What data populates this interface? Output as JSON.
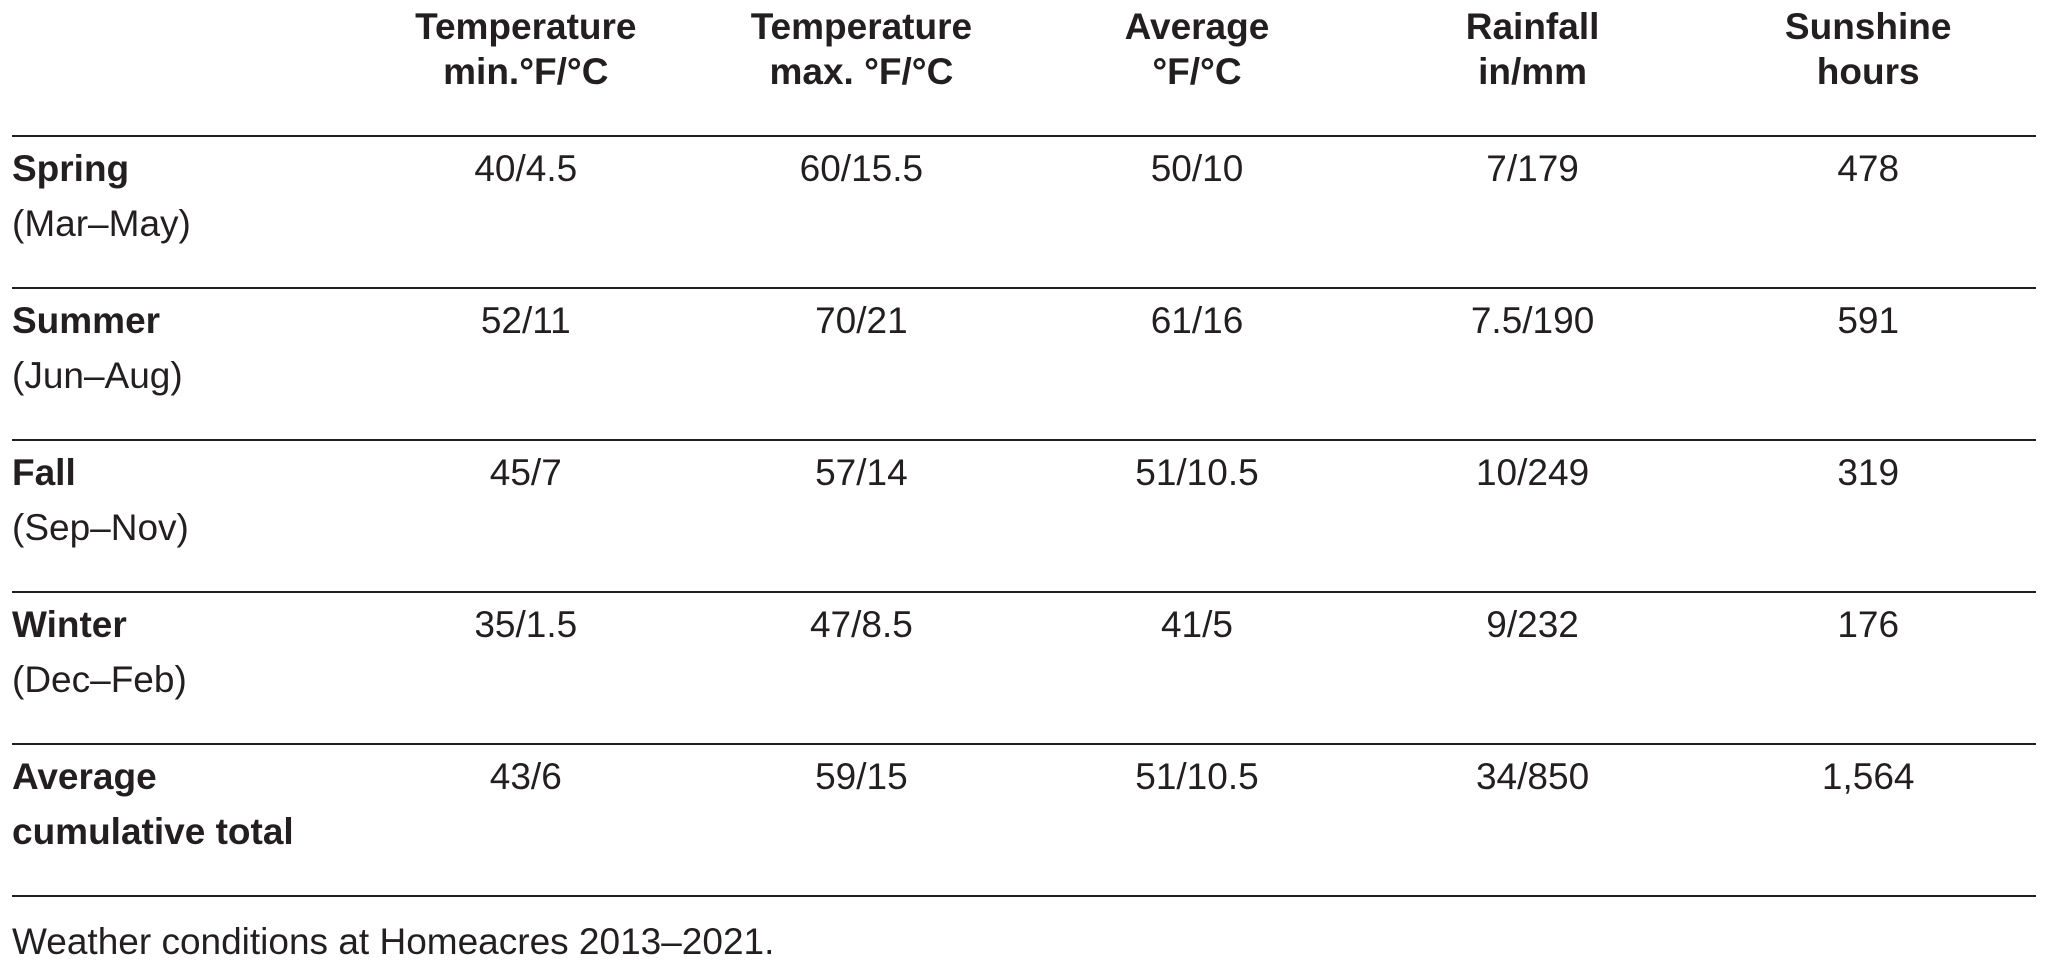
{
  "table": {
    "columns": [
      {
        "line1": "Temperature",
        "line2": "min.°F/°C"
      },
      {
        "line1": "Temperature",
        "line2": "max. °F/°C"
      },
      {
        "line1": "Average",
        "line2": "°F/°C"
      },
      {
        "line1": "Rainfall",
        "line2": "in/mm"
      },
      {
        "line1": "Sunshine",
        "line2": "hours"
      }
    ],
    "rows": [
      {
        "label": "Spring",
        "sublabel": "(Mar–May)",
        "values": [
          "40/4.5",
          "60/15.5",
          "50/10",
          "7/179",
          "478"
        ]
      },
      {
        "label": "Summer",
        "sublabel": "(Jun–Aug)",
        "values": [
          "52/11",
          "70/21",
          "61/16",
          "7.5/190",
          "591"
        ]
      },
      {
        "label": "Fall",
        "sublabel": "(Sep–Nov)",
        "values": [
          "45/7",
          "57/14",
          "51/10.5",
          "10/249",
          "319"
        ]
      },
      {
        "label": "Winter",
        "sublabel": "(Dec–Feb)",
        "values": [
          "35/1.5",
          "47/8.5",
          "41/5",
          "9/232",
          "176"
        ]
      },
      {
        "label": "Average",
        "sublabel": "cumulative total",
        "values": [
          "43/6",
          "59/15",
          "51/10.5",
          "34/850",
          "1,564"
        ]
      }
    ]
  },
  "caption": "Weather conditions at Homeacres 2013–2021."
}
